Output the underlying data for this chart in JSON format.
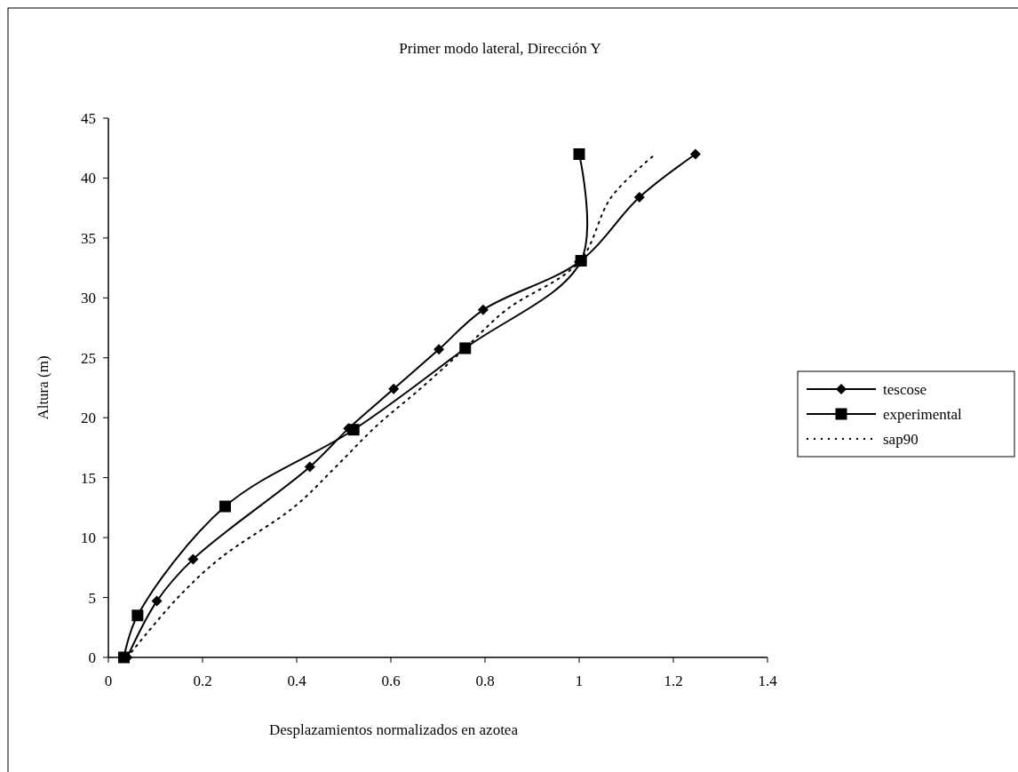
{
  "chart_data": {
    "type": "line",
    "title": "Primer modo lateral, Dirección Y",
    "xlabel": "Desplazamientos normalizados en azotea",
    "ylabel": "Altura (m)",
    "xlim": [
      0,
      1.4
    ],
    "xticks": [
      0,
      0.2,
      0.4,
      0.6,
      0.8,
      1,
      1.2,
      1.4
    ],
    "ylim": [
      0,
      45
    ],
    "yticks": [
      0,
      5,
      10,
      15,
      20,
      25,
      30,
      35,
      40,
      45
    ],
    "grid": false,
    "legend": "right",
    "series": [
      {
        "name": "tescose",
        "color": "#000000",
        "marker": "diamond",
        "line_style": "solid",
        "x": [
          0.04,
          0.103,
          0.18,
          0.428,
          0.51,
          0.606,
          0.702,
          0.796,
          1.0,
          1.128,
          1.247
        ],
        "values": [
          0,
          4.7,
          8.2,
          15.9,
          19.1,
          22.4,
          25.7,
          29.0,
          33.0,
          38.4,
          42.0
        ]
      },
      {
        "name": "experimental",
        "color": "#000000",
        "marker": "square",
        "line_style": "solid",
        "x": [
          0.033,
          0.062,
          0.248,
          0.521,
          0.758,
          1.004,
          1.0
        ],
        "values": [
          0,
          3.5,
          12.6,
          19.0,
          25.8,
          33.1,
          42.0
        ]
      },
      {
        "name": "sap90",
        "color": "#000000",
        "marker": "none",
        "line_style": "dotted",
        "x": [
          0.04,
          0.143,
          0.235,
          0.396,
          0.483,
          0.569,
          0.665,
          0.755,
          0.845,
          1.0,
          1.068,
          1.159
        ],
        "values": [
          0,
          4.8,
          8.2,
          12.6,
          15.9,
          19.3,
          22.5,
          25.7,
          29.0,
          33.0,
          38.4,
          41.9
        ]
      }
    ]
  }
}
